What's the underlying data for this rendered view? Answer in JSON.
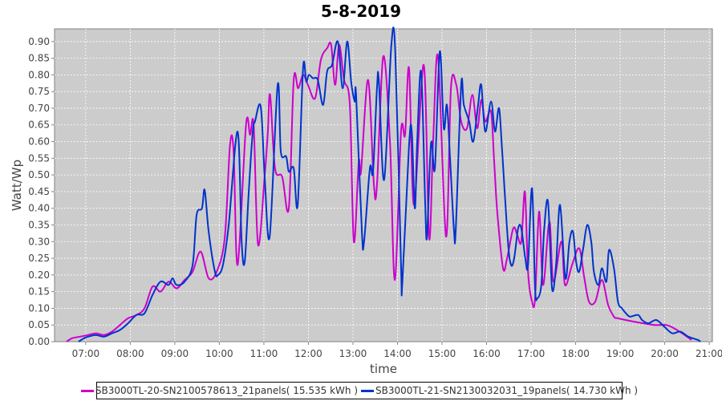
{
  "chart_data": {
    "type": "line",
    "title": "5-8-2019",
    "xlabel": "time",
    "ylabel": "Watt/Wp",
    "xlim": [
      6.3,
      21.07
    ],
    "ylim": [
      0,
      0.938
    ],
    "x_ticks": [
      {
        "v": 7,
        "label": "07:00"
      },
      {
        "v": 8,
        "label": "08:00"
      },
      {
        "v": 9,
        "label": "09:00"
      },
      {
        "v": 10,
        "label": "10:00"
      },
      {
        "v": 11,
        "label": "11:00"
      },
      {
        "v": 12,
        "label": "12:00"
      },
      {
        "v": 13,
        "label": "13:00"
      },
      {
        "v": 14,
        "label": "14:00"
      },
      {
        "v": 15,
        "label": "15:00"
      },
      {
        "v": 16,
        "label": "16:00"
      },
      {
        "v": 17,
        "label": "17:00"
      },
      {
        "v": 18,
        "label": "18:00"
      },
      {
        "v": 19,
        "label": "19:00"
      },
      {
        "v": 20,
        "label": "20:00"
      },
      {
        "v": 21,
        "label": "21:00"
      }
    ],
    "y_ticks": [
      "0.00",
      "0.05",
      "0.10",
      "0.15",
      "0.20",
      "0.25",
      "0.30",
      "0.35",
      "0.40",
      "0.45",
      "0.50",
      "0.55",
      "0.60",
      "0.65",
      "0.70",
      "0.75",
      "0.80",
      "0.85",
      "0.90"
    ],
    "grid": true,
    "legend_position": "bottom",
    "series": [
      {
        "name": "SB3000TL-20-SN2100578613_21panels( 15.535 kWh )",
        "color": "#cc00cc",
        "points": [
          [
            6.57,
            0
          ],
          [
            6.69,
            0.01
          ],
          [
            6.87,
            0.015
          ],
          [
            7.05,
            0.02
          ],
          [
            7.23,
            0.025
          ],
          [
            7.41,
            0.02
          ],
          [
            7.59,
            0.03
          ],
          [
            7.77,
            0.05
          ],
          [
            7.95,
            0.07
          ],
          [
            8.14,
            0.08
          ],
          [
            8.32,
            0.1
          ],
          [
            8.5,
            0.165
          ],
          [
            8.68,
            0.15
          ],
          [
            8.86,
            0.18
          ],
          [
            9.04,
            0.16
          ],
          [
            9.22,
            0.185
          ],
          [
            9.4,
            0.21
          ],
          [
            9.58,
            0.27
          ],
          [
            9.76,
            0.19
          ],
          [
            9.94,
            0.21
          ],
          [
            10.12,
            0.31
          ],
          [
            10.24,
            0.59
          ],
          [
            10.32,
            0.57
          ],
          [
            10.41,
            0.23
          ],
          [
            10.6,
            0.65
          ],
          [
            10.69,
            0.62
          ],
          [
            10.77,
            0.65
          ],
          [
            10.87,
            0.29
          ],
          [
            11.02,
            0.5
          ],
          [
            11.09,
            0.63
          ],
          [
            11.14,
            0.74
          ],
          [
            11.25,
            0.52
          ],
          [
            11.41,
            0.495
          ],
          [
            11.56,
            0.4
          ],
          [
            11.67,
            0.785
          ],
          [
            11.77,
            0.76
          ],
          [
            11.88,
            0.8
          ],
          [
            11.99,
            0.77
          ],
          [
            12.15,
            0.73
          ],
          [
            12.28,
            0.845
          ],
          [
            12.42,
            0.88
          ],
          [
            12.51,
            0.89
          ],
          [
            12.6,
            0.77
          ],
          [
            12.69,
            0.89
          ],
          [
            12.8,
            0.785
          ],
          [
            12.93,
            0.71
          ],
          [
            13.02,
            0.3
          ],
          [
            13.13,
            0.54
          ],
          [
            13.18,
            0.51
          ],
          [
            13.34,
            0.785
          ],
          [
            13.47,
            0.47
          ],
          [
            13.54,
            0.47
          ],
          [
            13.68,
            0.855
          ],
          [
            13.83,
            0.6
          ],
          [
            13.94,
            0.185
          ],
          [
            14.08,
            0.63
          ],
          [
            14.17,
            0.62
          ],
          [
            14.26,
            0.82
          ],
          [
            14.37,
            0.41
          ],
          [
            14.59,
            0.83
          ],
          [
            14.71,
            0.31
          ],
          [
            14.8,
            0.6
          ],
          [
            14.91,
            0.855
          ],
          [
            15.09,
            0.315
          ],
          [
            15.2,
            0.76
          ],
          [
            15.32,
            0.77
          ],
          [
            15.43,
            0.66
          ],
          [
            15.56,
            0.64
          ],
          [
            15.68,
            0.74
          ],
          [
            15.79,
            0.64
          ],
          [
            15.88,
            0.725
          ],
          [
            15.97,
            0.66
          ],
          [
            16.1,
            0.69
          ],
          [
            16.17,
            0.54
          ],
          [
            16.24,
            0.39
          ],
          [
            16.37,
            0.22
          ],
          [
            16.46,
            0.25
          ],
          [
            16.6,
            0.34
          ],
          [
            16.69,
            0.32
          ],
          [
            16.78,
            0.3
          ],
          [
            16.86,
            0.45
          ],
          [
            16.93,
            0.21
          ],
          [
            17.02,
            0.12
          ],
          [
            17.09,
            0.13
          ],
          [
            17.18,
            0.39
          ],
          [
            17.27,
            0.17
          ],
          [
            17.41,
            0.36
          ],
          [
            17.5,
            0.18
          ],
          [
            17.68,
            0.3
          ],
          [
            17.76,
            0.17
          ],
          [
            17.92,
            0.23
          ],
          [
            18.08,
            0.28
          ],
          [
            18.19,
            0.195
          ],
          [
            18.3,
            0.12
          ],
          [
            18.44,
            0.12
          ],
          [
            18.59,
            0.185
          ],
          [
            18.73,
            0.11
          ],
          [
            18.86,
            0.075
          ],
          [
            18.95,
            0.07
          ],
          [
            19.31,
            0.06
          ],
          [
            19.76,
            0.05
          ],
          [
            20.03,
            0.05
          ],
          [
            20.21,
            0.04
          ],
          [
            20.39,
            0.025
          ],
          [
            20.6,
            0.005
          ]
        ]
      },
      {
        "name": "SB3000TL-21-SN2130032031_19panels( 14.730 kWh )",
        "color": "#0033cc",
        "points": [
          [
            6.84,
            0
          ],
          [
            6.96,
            0.01
          ],
          [
            7.05,
            0.015
          ],
          [
            7.23,
            0.02
          ],
          [
            7.41,
            0.015
          ],
          [
            7.59,
            0.025
          ],
          [
            7.77,
            0.035
          ],
          [
            7.95,
            0.055
          ],
          [
            8.14,
            0.08
          ],
          [
            8.32,
            0.085
          ],
          [
            8.5,
            0.14
          ],
          [
            8.68,
            0.18
          ],
          [
            8.86,
            0.17
          ],
          [
            8.95,
            0.19
          ],
          [
            9.04,
            0.17
          ],
          [
            9.22,
            0.18
          ],
          [
            9.4,
            0.23
          ],
          [
            9.49,
            0.38
          ],
          [
            9.61,
            0.4
          ],
          [
            9.67,
            0.455
          ],
          [
            9.76,
            0.33
          ],
          [
            9.9,
            0.21
          ],
          [
            9.97,
            0.2
          ],
          [
            10.08,
            0.23
          ],
          [
            10.21,
            0.35
          ],
          [
            10.41,
            0.63
          ],
          [
            10.5,
            0.3
          ],
          [
            10.57,
            0.24
          ],
          [
            10.66,
            0.45
          ],
          [
            10.75,
            0.63
          ],
          [
            10.8,
            0.66
          ],
          [
            10.93,
            0.705
          ],
          [
            11.02,
            0.49
          ],
          [
            11.13,
            0.315
          ],
          [
            11.31,
            0.77
          ],
          [
            11.38,
            0.57
          ],
          [
            11.5,
            0.555
          ],
          [
            11.56,
            0.51
          ],
          [
            11.67,
            0.52
          ],
          [
            11.76,
            0.41
          ],
          [
            11.88,
            0.82
          ],
          [
            11.95,
            0.78
          ],
          [
            12.01,
            0.8
          ],
          [
            12.1,
            0.79
          ],
          [
            12.21,
            0.785
          ],
          [
            12.33,
            0.71
          ],
          [
            12.42,
            0.81
          ],
          [
            12.53,
            0.83
          ],
          [
            12.66,
            0.9
          ],
          [
            12.77,
            0.76
          ],
          [
            12.87,
            0.9
          ],
          [
            12.96,
            0.78
          ],
          [
            13.04,
            0.72
          ],
          [
            13.07,
            0.74
          ],
          [
            13.2,
            0.33
          ],
          [
            13.25,
            0.3
          ],
          [
            13.38,
            0.52
          ],
          [
            13.45,
            0.51
          ],
          [
            13.54,
            0.76
          ],
          [
            13.58,
            0.785
          ],
          [
            13.7,
            0.485
          ],
          [
            13.86,
            0.885
          ],
          [
            13.95,
            0.87
          ],
          [
            14.08,
            0.23
          ],
          [
            14.11,
            0.18
          ],
          [
            14.26,
            0.59
          ],
          [
            14.32,
            0.63
          ],
          [
            14.39,
            0.4
          ],
          [
            14.44,
            0.59
          ],
          [
            14.53,
            0.81
          ],
          [
            14.62,
            0.425
          ],
          [
            14.66,
            0.31
          ],
          [
            14.73,
            0.54
          ],
          [
            14.77,
            0.6
          ],
          [
            14.84,
            0.52
          ],
          [
            14.95,
            0.87
          ],
          [
            15.04,
            0.64
          ],
          [
            15.11,
            0.71
          ],
          [
            15.18,
            0.55
          ],
          [
            15.27,
            0.33
          ],
          [
            15.31,
            0.34
          ],
          [
            15.43,
            0.77
          ],
          [
            15.49,
            0.71
          ],
          [
            15.61,
            0.66
          ],
          [
            15.7,
            0.6
          ],
          [
            15.81,
            0.71
          ],
          [
            15.88,
            0.77
          ],
          [
            15.97,
            0.63
          ],
          [
            16.1,
            0.72
          ],
          [
            16.19,
            0.63
          ],
          [
            16.28,
            0.7
          ],
          [
            16.35,
            0.57
          ],
          [
            16.48,
            0.3
          ],
          [
            16.55,
            0.23
          ],
          [
            16.62,
            0.25
          ],
          [
            16.71,
            0.34
          ],
          [
            16.78,
            0.34
          ],
          [
            16.87,
            0.25
          ],
          [
            16.93,
            0.23
          ],
          [
            17.02,
            0.46
          ],
          [
            17.09,
            0.16
          ],
          [
            17.14,
            0.13
          ],
          [
            17.23,
            0.17
          ],
          [
            17.29,
            0.33
          ],
          [
            17.38,
            0.42
          ],
          [
            17.47,
            0.16
          ],
          [
            17.56,
            0.23
          ],
          [
            17.65,
            0.41
          ],
          [
            17.77,
            0.19
          ],
          [
            17.86,
            0.3
          ],
          [
            17.94,
            0.33
          ],
          [
            18.01,
            0.24
          ],
          [
            18.08,
            0.21
          ],
          [
            18.17,
            0.28
          ],
          [
            18.26,
            0.35
          ],
          [
            18.35,
            0.3
          ],
          [
            18.41,
            0.21
          ],
          [
            18.51,
            0.17
          ],
          [
            18.59,
            0.22
          ],
          [
            18.69,
            0.18
          ],
          [
            18.75,
            0.275
          ],
          [
            18.86,
            0.22
          ],
          [
            18.95,
            0.12
          ],
          [
            19.04,
            0.1
          ],
          [
            19.13,
            0.085
          ],
          [
            19.22,
            0.075
          ],
          [
            19.4,
            0.08
          ],
          [
            19.49,
            0.065
          ],
          [
            19.63,
            0.055
          ],
          [
            19.81,
            0.065
          ],
          [
            19.99,
            0.045
          ],
          [
            20.17,
            0.025
          ],
          [
            20.35,
            0.03
          ],
          [
            20.53,
            0.015
          ],
          [
            20.75,
            0.005
          ],
          [
            20.8,
            0
          ]
        ]
      }
    ]
  }
}
